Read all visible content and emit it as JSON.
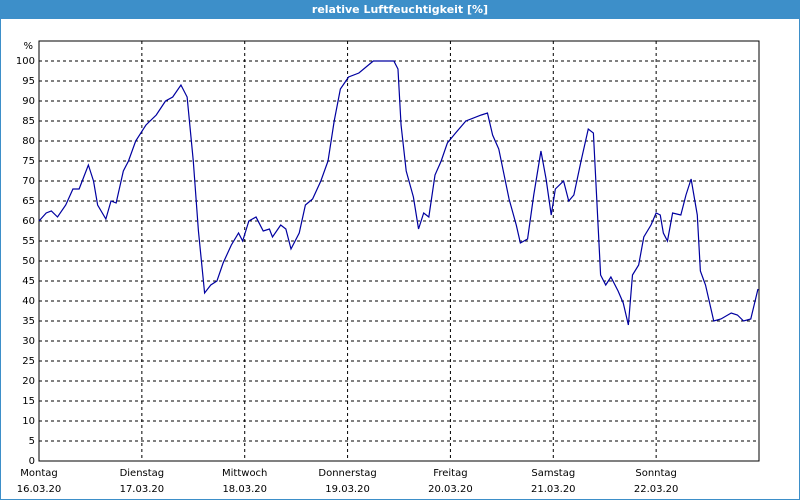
{
  "chart_data": {
    "type": "line",
    "title": "relative Luftfeuchtigkeit [%]",
    "y_unit": "%",
    "x": [
      0,
      0.07,
      0.12,
      0.18,
      0.26,
      0.33,
      0.39,
      0.48,
      0.53,
      0.57,
      0.65,
      0.7,
      0.75,
      0.82,
      0.87,
      0.94,
      1.04,
      1.14,
      1.23,
      1.3,
      1.38,
      1.44,
      1.5,
      1.55,
      1.61,
      1.67,
      1.73,
      1.79,
      1.87,
      1.94,
      1.98,
      2.04,
      2.11,
      2.18,
      2.24,
      2.27,
      2.35,
      2.4,
      2.45,
      2.53,
      2.59,
      2.66,
      2.74,
      2.81,
      2.87,
      2.93,
      3.01,
      3.11,
      3.25,
      3.45,
      3.49,
      3.52,
      3.57,
      3.64,
      3.69,
      3.74,
      3.79,
      3.85,
      3.91,
      3.97,
      4.05,
      4.15,
      4.3,
      4.36,
      4.41,
      4.47,
      4.57,
      4.64,
      4.68,
      4.75,
      4.81,
      4.88,
      4.93,
      4.98,
      5.02,
      5.1,
      5.15,
      5.2,
      5.27,
      5.34,
      5.39,
      5.46,
      5.51,
      5.56,
      5.63,
      5.68,
      5.73,
      5.77,
      5.83,
      5.88,
      5.95,
      6.0,
      6.04,
      6.07,
      6.11,
      6.16,
      6.24,
      6.29,
      6.34,
      6.4,
      6.43,
      6.48,
      6.56,
      6.63,
      6.73,
      6.79,
      6.85,
      6.92,
      6.99
    ],
    "series": [
      {
        "name": "relative Luftfeuchtigkeit",
        "color": "#0000a0",
        "values": [
          60,
          62,
          62.5,
          61,
          64,
          68,
          68,
          74,
          70,
          64,
          60.5,
          65,
          64.5,
          72.5,
          75,
          80,
          84,
          86.5,
          90,
          91,
          94,
          91,
          75,
          57.5,
          42,
          44,
          45,
          49.5,
          54,
          57,
          55,
          60,
          61,
          57.5,
          58,
          56,
          59,
          58,
          53,
          57,
          64,
          65.5,
          70,
          75,
          85,
          93,
          96,
          97,
          100,
          100,
          98,
          84,
          72.5,
          66,
          58,
          62,
          61,
          71.5,
          75,
          79.5,
          82,
          85,
          86.5,
          87,
          81.5,
          78,
          65.5,
          59,
          54.5,
          55.5,
          66.5,
          77.5,
          70.5,
          61.5,
          68,
          70,
          65,
          66.5,
          75,
          83,
          82,
          46.5,
          44,
          46,
          42.5,
          39.5,
          34,
          46.5,
          49,
          56,
          59,
          62,
          61.5,
          57,
          55,
          62,
          61.5,
          66.5,
          70.5,
          61.5,
          47.5,
          44,
          35,
          35.5,
          37,
          36.5,
          35,
          35.5,
          43
        ]
      }
    ],
    "xlim": [
      0,
      7
    ],
    "ylim": [
      0,
      105
    ],
    "xticks": [
      {
        "value": 0,
        "label": "Montag"
      },
      {
        "value": 1,
        "label": "Dienstag"
      },
      {
        "value": 2,
        "label": "Mittwoch"
      },
      {
        "value": 3,
        "label": "Donnerstag"
      },
      {
        "value": 4,
        "label": "Freitag"
      },
      {
        "value": 5,
        "label": "Samstag"
      },
      {
        "value": 6,
        "label": "Sonntag"
      }
    ],
    "xtick_dates": [
      "16.03.20",
      "17.03.20",
      "18.03.20",
      "19.03.20",
      "20.03.20",
      "21.03.20",
      "22.03.20"
    ],
    "yticks": [
      0,
      5,
      10,
      15,
      20,
      25,
      30,
      35,
      40,
      45,
      50,
      55,
      60,
      65,
      70,
      75,
      80,
      85,
      90,
      95,
      100
    ],
    "grid": true
  }
}
